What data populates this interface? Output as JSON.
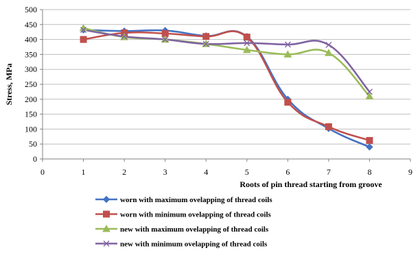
{
  "chart_data": {
    "type": "line",
    "title": "",
    "xlabel": "Roots of pin thread starting from groove",
    "ylabel": "Stress, MPa",
    "xlim": [
      0,
      9
    ],
    "ylim": [
      0,
      500
    ],
    "x_ticks": [
      "0",
      "1",
      "2",
      "3",
      "4",
      "5",
      "6",
      "7",
      "8",
      "9"
    ],
    "y_ticks": [
      "0",
      "50",
      "100",
      "150",
      "200",
      "250",
      "300",
      "350",
      "400",
      "450",
      "500"
    ],
    "grid": "horizontal",
    "legend_position": "bottom",
    "x": [
      1,
      2,
      3,
      4,
      5,
      6,
      7,
      8
    ],
    "series": [
      {
        "name": "worn with maximum ovelapping of thread coils",
        "color": "#4472C4",
        "marker": "diamond",
        "values": [
          432,
          428,
          430,
          412,
          410,
          200,
          102,
          40
        ]
      },
      {
        "name": "worn with minimum ovelapping of thread coils",
        "color": "#C0504D",
        "marker": "square",
        "values": [
          400,
          422,
          420,
          410,
          408,
          190,
          108,
          62
        ]
      },
      {
        "name": "new with maximum ovelapping of thread coils",
        "color": "#9BBB59",
        "marker": "triangle",
        "values": [
          438,
          408,
          400,
          385,
          365,
          350,
          355,
          210
        ]
      },
      {
        "name": "new with minimum ovelapping of thread coils",
        "color": "#8064A2",
        "marker": "x",
        "values": [
          432,
          410,
          400,
          385,
          388,
          383,
          382,
          225
        ]
      }
    ]
  }
}
